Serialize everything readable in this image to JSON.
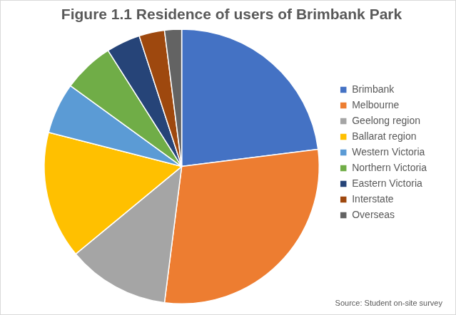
{
  "chart_data": {
    "type": "pie",
    "title": "Figure 1.1 Residence of users of Brimbank Park",
    "categories": [
      "Brimbank",
      "Melbourne",
      "Geelong region",
      "Ballarat region",
      "Western Victoria",
      "Northern Victoria",
      "Eastern Victoria",
      "Interstate",
      "Overseas"
    ],
    "values": [
      23,
      29,
      12,
      15,
      6,
      6,
      4,
      3,
      2
    ],
    "colors": [
      "#4472c4",
      "#ed7d31",
      "#a5a5a5",
      "#ffc000",
      "#5b9bd5",
      "#70ad47",
      "#264478",
      "#9e480e",
      "#636363"
    ],
    "legend": "right",
    "source": "Source: Student on-site survey"
  }
}
